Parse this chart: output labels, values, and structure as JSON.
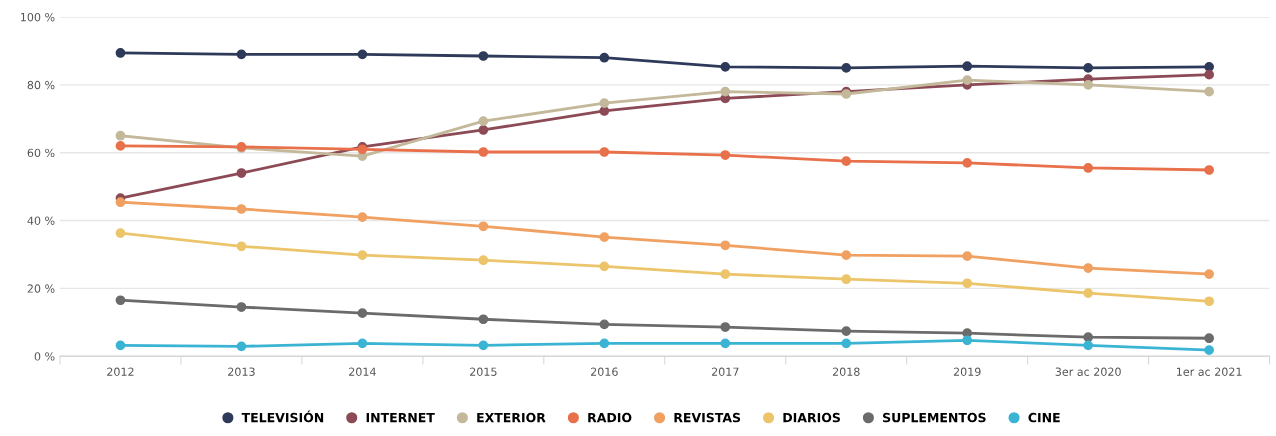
{
  "chart_data": {
    "type": "line",
    "categories": [
      "2012",
      "2013",
      "2014",
      "2015",
      "2016",
      "2017",
      "2018",
      "2019",
      "3er ac 2020",
      "1er ac 2021"
    ],
    "series": [
      {
        "name": "TELEVISIÓN",
        "color": "#2e3a59",
        "values": [
          89.4,
          89,
          89,
          88.5,
          88,
          85.3,
          85,
          85.5,
          85,
          85.3
        ]
      },
      {
        "name": "INTERNET",
        "color": "#8b4a55",
        "values": [
          46.6,
          54,
          61.7,
          66.7,
          72.3,
          76,
          78,
          80,
          81.7,
          83
        ]
      },
      {
        "name": "EXTERIOR",
        "color": "#c4b89a",
        "values": [
          65,
          61.4,
          59,
          69.3,
          74.6,
          78,
          77.3,
          81.4,
          80,
          78
        ]
      },
      {
        "name": "RADIO",
        "color": "#e8704a",
        "values": [
          62,
          61.7,
          61,
          60.2,
          60.2,
          59.3,
          57.5,
          57,
          55.5,
          54.9
        ]
      },
      {
        "name": "REVISTAS",
        "color": "#f0a060",
        "values": [
          45.4,
          43.4,
          41,
          38.3,
          35.1,
          32.7,
          29.8,
          29.5,
          26,
          24.2
        ]
      },
      {
        "name": "DIARIOS",
        "color": "#ecc46a",
        "values": [
          36.3,
          32.4,
          29.8,
          28.3,
          26.5,
          24.2,
          22.7,
          21.5,
          18.6,
          16.2
        ]
      },
      {
        "name": "SUPLEMENTOS",
        "color": "#6b6b6b",
        "values": [
          16.5,
          14.5,
          12.7,
          10.9,
          9.4,
          8.6,
          7.4,
          6.8,
          5.6,
          5.3
        ]
      },
      {
        "name": "CINE",
        "color": "#3bb4d4",
        "values": [
          3.2,
          2.9,
          3.8,
          3.2,
          3.8,
          3.8,
          3.8,
          4.7,
          3.2,
          1.8
        ]
      }
    ],
    "ylim": [
      0,
      100
    ],
    "yticks": [
      {
        "value": 0,
        "label": "0 %"
      },
      {
        "value": 20,
        "label": "20 %"
      },
      {
        "value": 40,
        "label": "40 %"
      },
      {
        "value": 60,
        "label": "60 %"
      },
      {
        "value": 80,
        "label": "80 %"
      },
      {
        "value": 100,
        "label": "100 %"
      }
    ],
    "grid": "y",
    "legend": "bottom",
    "marker": "circle",
    "line_style": "solid"
  }
}
